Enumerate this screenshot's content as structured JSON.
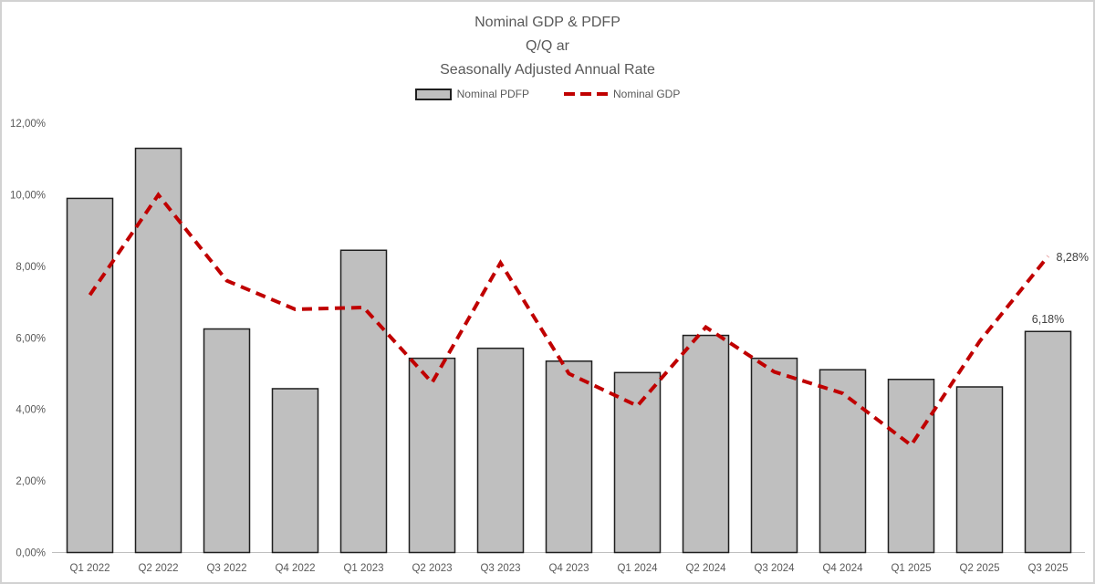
{
  "title": {
    "line1": "Nominal GDP & PDFP",
    "line2": "Q/Q ar",
    "line3": "Seasonally Adjusted Annual Rate"
  },
  "legend": [
    {
      "label": "Nominal PDFP",
      "swatch": "gray-bar"
    },
    {
      "label": "Nominal GDP",
      "swatch": "red-dashed-line"
    }
  ],
  "colors": {
    "bar_fill": "#bfbfbf",
    "bar_border": "#1f1f1f",
    "line": "#c00000",
    "axis_text": "#595959",
    "axis_line": "#bfbfbf",
    "annotation_text": "#404040"
  },
  "chart_data": {
    "type": "bar",
    "subtype": "bar-with-dashed-line-overlay",
    "title": "Nominal GDP & PDFP / Q/Q ar / Seasonally Adjusted Annual Rate",
    "categories": [
      "Q1 2022",
      "Q2 2022",
      "Q3 2022",
      "Q4 2022",
      "Q1 2023",
      "Q2 2023",
      "Q3 2023",
      "Q4 2023",
      "Q1 2024",
      "Q2 2024",
      "Q3 2024",
      "Q4 2024",
      "Q1 2025",
      "Q2 2025",
      "Q3 2025"
    ],
    "series": [
      {
        "name": "Nominal PDFP",
        "type": "bar",
        "values": [
          9.9,
          11.3,
          6.25,
          4.58,
          8.45,
          5.43,
          5.71,
          5.35,
          5.03,
          6.07,
          5.43,
          5.11,
          4.84,
          4.63,
          6.18
        ]
      },
      {
        "name": "Nominal GDP",
        "type": "line",
        "values": [
          7.2,
          10.0,
          7.6,
          6.8,
          6.85,
          4.75,
          8.1,
          5.0,
          4.1,
          6.3,
          5.05,
          4.45,
          3.0,
          5.9,
          8.28
        ]
      }
    ],
    "annotations": [
      {
        "text": "6,18%",
        "series": "Nominal PDFP",
        "category": "Q3 2025"
      },
      {
        "text": "8,28%",
        "series": "Nominal GDP",
        "category": "Q3 2025"
      }
    ],
    "y_ticks": [
      "0,00%",
      "2,00%",
      "4,00%",
      "6,00%",
      "8,00%",
      "10,00%",
      "12,00%"
    ],
    "y_tick_values": [
      0,
      2,
      4,
      6,
      8,
      10,
      12
    ],
    "ylim": [
      0,
      12
    ],
    "grid": false,
    "legend_position": "top",
    "xlabel": "",
    "ylabel": ""
  }
}
